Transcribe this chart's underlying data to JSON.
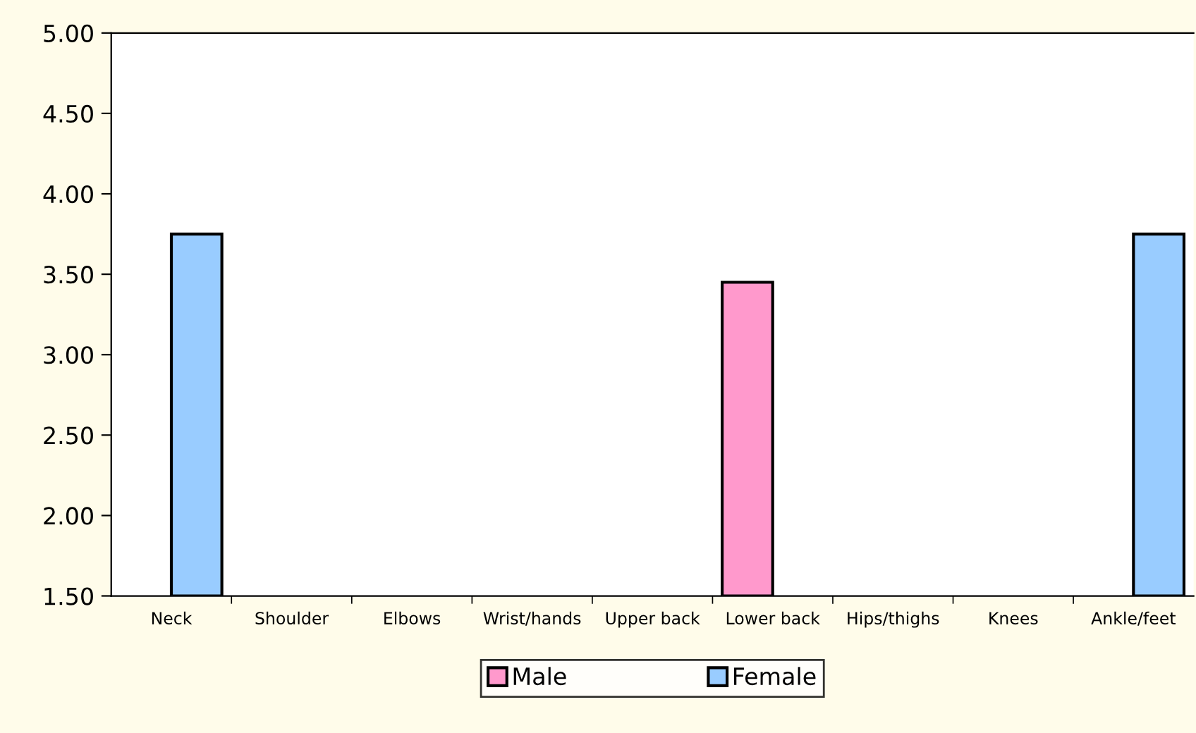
{
  "chart_data": {
    "type": "bar",
    "categories": [
      "Neck",
      "Shoulder",
      "Elbows",
      "Wrist/hands",
      "Upper back",
      "Lower back",
      "Hips/thighs",
      "Knees",
      "Ankle/feet"
    ],
    "series": [
      {
        "name": "Male",
        "color": "#ff99cc",
        "values": [
          null,
          null,
          null,
          null,
          null,
          3.45,
          null,
          null,
          null
        ]
      },
      {
        "name": "Female",
        "color": "#99ccff",
        "values": [
          3.75,
          null,
          null,
          null,
          null,
          null,
          null,
          null,
          3.75
        ]
      }
    ],
    "ylim": [
      1.5,
      5.0
    ],
    "yticks": [
      {
        "value": 1.5,
        "label": "1.50"
      },
      {
        "value": 2.0,
        "label": "2.00"
      },
      {
        "value": 2.5,
        "label": "2.50"
      },
      {
        "value": 3.0,
        "label": "3.00"
      },
      {
        "value": 3.5,
        "label": "3.50"
      },
      {
        "value": 4.0,
        "label": "4.00"
      },
      {
        "value": 4.5,
        "label": "4.50"
      },
      {
        "value": 5.0,
        "label": "5.00"
      }
    ],
    "grid": false,
    "legend": "bottom"
  }
}
